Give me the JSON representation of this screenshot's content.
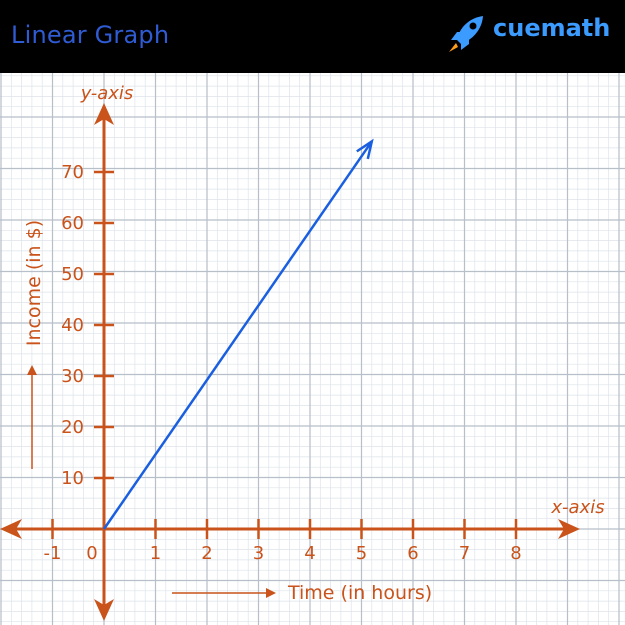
{
  "header": {
    "title": "Linear Graph",
    "brand": "cuemath",
    "title_color": "#2f5bd3",
    "brand_color": "#3b9bff",
    "brand_icon": "rocket-icon"
  },
  "chart_data": {
    "type": "line",
    "title": "Linear Graph",
    "x_axis_name": "x-axis",
    "y_axis_name": "y-axis",
    "xlabel": "Time (in hours)",
    "ylabel": "Income (in $)",
    "x_ticks": [
      -1,
      0,
      1,
      2,
      3,
      4,
      5,
      6,
      7,
      8
    ],
    "y_ticks": [
      10,
      20,
      30,
      40,
      50,
      60,
      70
    ],
    "xlim": [
      -1.5,
      9
    ],
    "ylim": [
      -15,
      80
    ],
    "grid": true,
    "axis_color": "#c9531a",
    "line_color": "#1a5fe0",
    "series": [
      {
        "x": [
          0,
          5.2
        ],
        "y": [
          0,
          76
        ]
      }
    ]
  }
}
